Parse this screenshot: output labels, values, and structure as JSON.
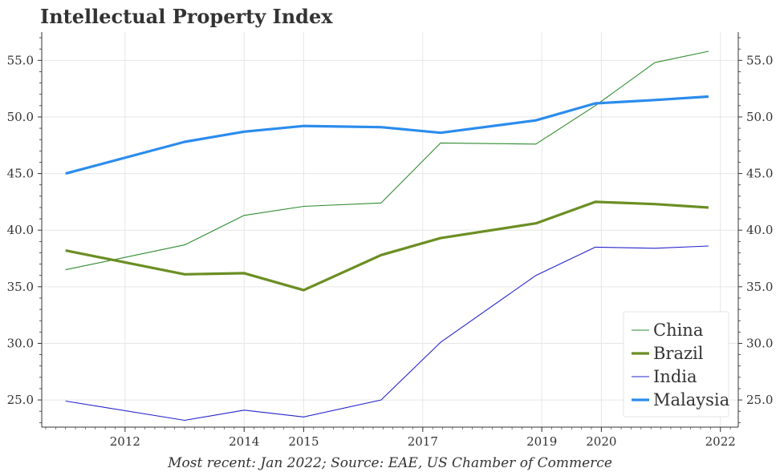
{
  "chart_data": {
    "type": "line",
    "title": "Intellectual Property Index",
    "footnote": "Most recent: Jan 2022; Source: EAE, US Chamber of Commerce",
    "x": [
      2011.0,
      2013.0,
      2014.0,
      2015.0,
      2016.3,
      2017.3,
      2018.9,
      2019.9,
      2020.9,
      2021.8
    ],
    "x_ticks": [
      {
        "value": 2012,
        "label": "2012"
      },
      {
        "value": 2014,
        "label": "2014"
      },
      {
        "value": 2015,
        "label": "2015"
      },
      {
        "value": 2017,
        "label": "2017"
      },
      {
        "value": 2019,
        "label": "2019"
      },
      {
        "value": 2020,
        "label": "2020"
      },
      {
        "value": 2022,
        "label": "2022"
      }
    ],
    "y_ticks": [
      25.0,
      30.0,
      35.0,
      40.0,
      45.0,
      50.0,
      55.0
    ],
    "xlim": [
      2010.6,
      2022.3
    ],
    "ylim": [
      22.6,
      57.5
    ],
    "grid": true,
    "legend_position": "bottom-right",
    "series": [
      {
        "name": "China",
        "color": "#2e8b2e",
        "style": "thin",
        "values": [
          36.5,
          38.7,
          41.3,
          42.1,
          42.4,
          47.7,
          47.6,
          51.0,
          54.8,
          55.8
        ]
      },
      {
        "name": "Brazil",
        "color": "#6b8e23",
        "style": "thick",
        "values": [
          38.2,
          36.1,
          36.2,
          34.7,
          37.8,
          39.3,
          40.6,
          42.5,
          42.3,
          42.0
        ]
      },
      {
        "name": "India",
        "color": "#2424cc",
        "style": "thin",
        "values": [
          24.9,
          23.2,
          24.1,
          23.5,
          25.0,
          30.1,
          36.0,
          38.5,
          38.4,
          38.6
        ]
      },
      {
        "name": "Malaysia",
        "color": "#2b8ced",
        "style": "thick",
        "values": [
          45.0,
          47.8,
          48.7,
          49.2,
          49.1,
          48.6,
          49.7,
          51.2,
          51.5,
          51.8
        ]
      }
    ]
  }
}
